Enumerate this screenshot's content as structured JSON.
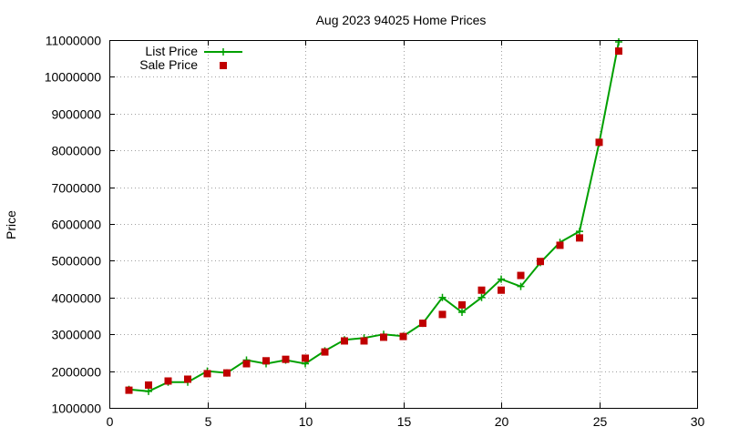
{
  "chart_data": {
    "type": "line",
    "title": "Aug 2023 94025 Home Prices",
    "xlabel": "",
    "ylabel": "Price",
    "xlim": [
      0,
      30
    ],
    "ylim": [
      1000000,
      11000000
    ],
    "x_ticks": [
      0,
      5,
      10,
      15,
      20,
      25,
      30
    ],
    "y_ticks": [
      1000000,
      2000000,
      3000000,
      4000000,
      5000000,
      6000000,
      7000000,
      8000000,
      9000000,
      10000000,
      11000000
    ],
    "grid": true,
    "legend_position": "top-left",
    "x": [
      1,
      2,
      3,
      4,
      5,
      6,
      7,
      8,
      9,
      10,
      11,
      12,
      13,
      14,
      15,
      16,
      17,
      18,
      19,
      20,
      21,
      22,
      23,
      24,
      25,
      26
    ],
    "series": [
      {
        "name": "List Price",
        "style": "line-plus",
        "color": "#00a000",
        "values": [
          1500000,
          1450000,
          1700000,
          1700000,
          2000000,
          1950000,
          2300000,
          2200000,
          2300000,
          2200000,
          2550000,
          2850000,
          2900000,
          3000000,
          2950000,
          3300000,
          4000000,
          3600000,
          4000000,
          4500000,
          4300000,
          4950000,
          5500000,
          5800000,
          8200000,
          10950000
        ]
      },
      {
        "name": "Sale Price",
        "style": "square",
        "color": "#c00000",
        "values": [
          1480000,
          1620000,
          1730000,
          1780000,
          1930000,
          1950000,
          2200000,
          2280000,
          2320000,
          2350000,
          2520000,
          2820000,
          2820000,
          2920000,
          2940000,
          3300000,
          3540000,
          3800000,
          4200000,
          4200000,
          4600000,
          4980000,
          5420000,
          5620000,
          8220000,
          10700000
        ]
      }
    ]
  }
}
